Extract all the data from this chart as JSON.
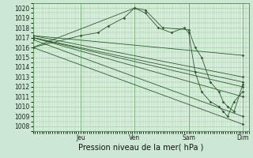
{
  "bg_color": "#cce8d4",
  "plot_bg_color": "#ddf0e4",
  "grid_color": "#99cc99",
  "line_color": "#2d5a2d",
  "ylim": [
    1007.5,
    1020.5
  ],
  "xlim": [
    0,
    1.0
  ],
  "xlabel": "Pression niveau de la mer( hPa )",
  "day_labels": [
    "Jeu",
    "Ven",
    "Sam",
    "Dim"
  ],
  "day_positions": [
    0.22,
    0.47,
    0.72,
    0.97
  ],
  "tick_fontsize": 5.5,
  "xlabel_fontsize": 7,
  "series": [
    {
      "x": [
        0.0,
        0.97
      ],
      "y": [
        1016.0,
        1008.2
      ]
    },
    {
      "x": [
        0.0,
        0.97
      ],
      "y": [
        1016.8,
        1009.0
      ]
    },
    {
      "x": [
        0.0,
        0.97
      ],
      "y": [
        1017.0,
        1011.0
      ]
    },
    {
      "x": [
        0.0,
        0.97
      ],
      "y": [
        1017.0,
        1012.0
      ]
    },
    {
      "x": [
        0.0,
        0.97
      ],
      "y": [
        1017.0,
        1012.5
      ]
    },
    {
      "x": [
        0.0,
        0.97
      ],
      "y": [
        1017.2,
        1013.0
      ]
    },
    {
      "x": [
        0.0,
        0.97
      ],
      "y": [
        1017.2,
        1015.2
      ]
    },
    {
      "x": [
        0.0,
        0.47,
        0.52,
        0.6,
        0.72,
        0.75,
        0.78,
        0.82,
        0.86,
        0.88,
        0.9,
        0.93,
        0.97
      ],
      "y": [
        1016.0,
        1020.0,
        1019.8,
        1018.0,
        1017.8,
        1016.0,
        1015.0,
        1012.5,
        1011.5,
        1010.5,
        1010.0,
        1009.5,
        1012.2
      ]
    },
    {
      "x": [
        0.0,
        0.22,
        0.3,
        0.35,
        0.42,
        0.47,
        0.52,
        0.58,
        0.64,
        0.7,
        0.72,
        0.75,
        0.78,
        0.82,
        0.86,
        0.88,
        0.9,
        0.93,
        0.97
      ],
      "y": [
        1016.0,
        1017.2,
        1017.5,
        1018.2,
        1019.0,
        1020.0,
        1019.5,
        1018.0,
        1017.5,
        1018.0,
        1017.5,
        1013.5,
        1011.5,
        1010.5,
        1010.0,
        1009.5,
        1009.0,
        1010.5,
        1011.5
      ]
    }
  ],
  "marker_size": 1.8
}
